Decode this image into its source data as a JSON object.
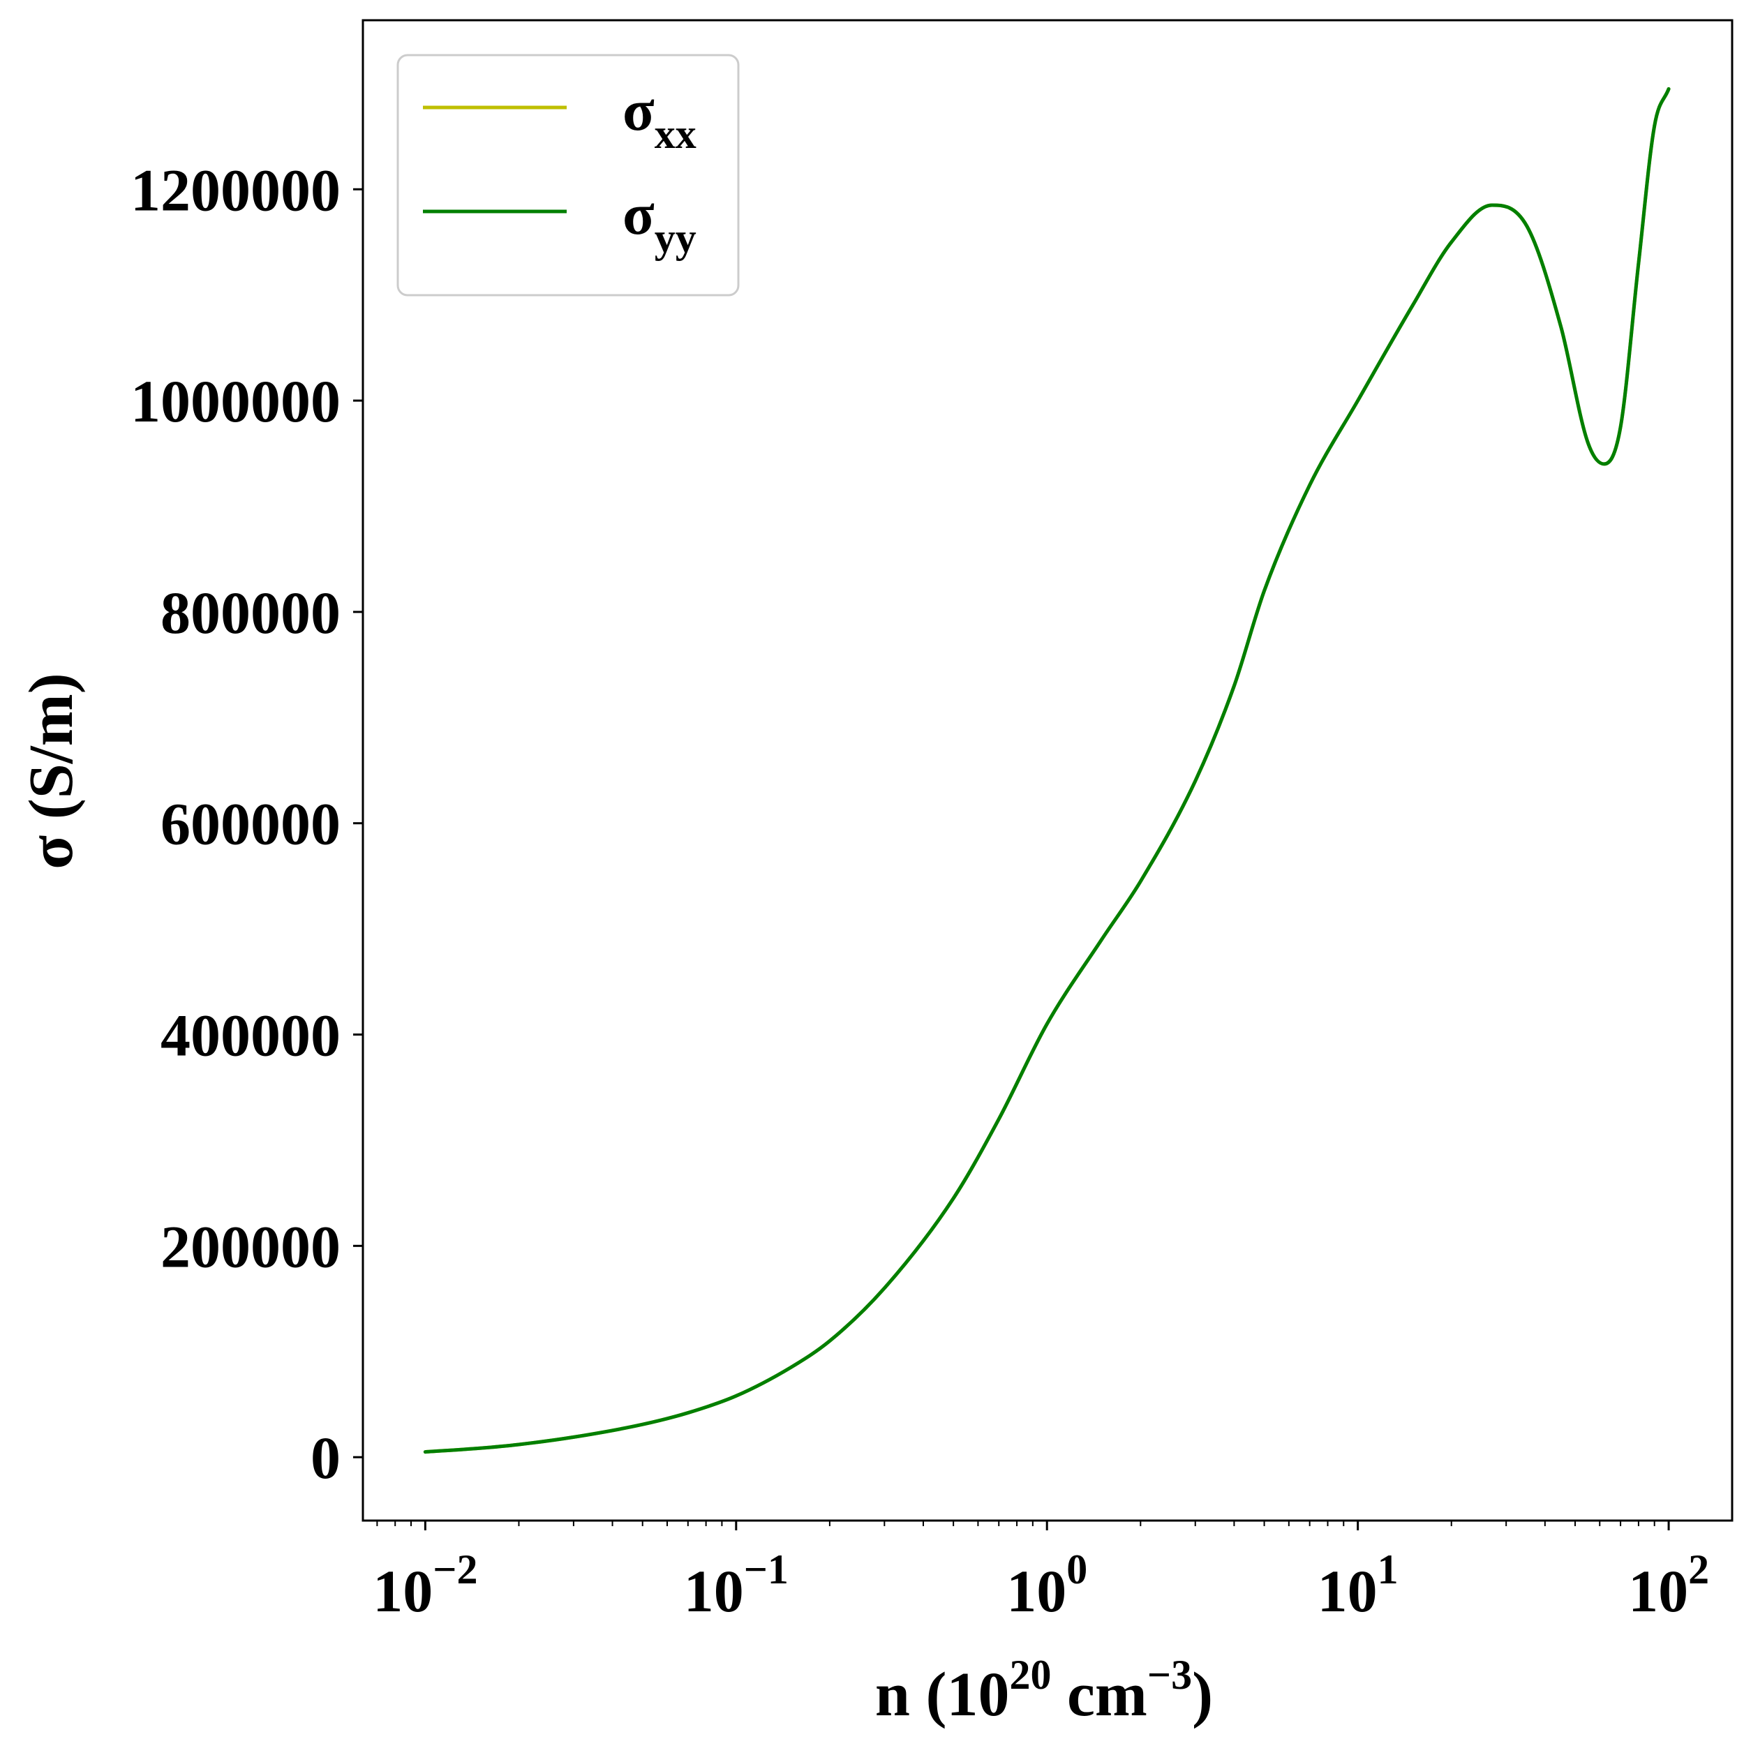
{
  "chart_data": {
    "type": "line",
    "x_scale": "log",
    "xlim": [
      0.0063,
      160
    ],
    "ylim": [
      -60000,
      1360000
    ],
    "xlabel": {
      "base": "n (10",
      "exp1": "20",
      "mid": " cm",
      "exp2": "−3",
      "end": ")"
    },
    "ylabel": "σ (S/m)",
    "x_ticks": [
      {
        "value": 0.01,
        "base": "10",
        "exp": "−2"
      },
      {
        "value": 0.1,
        "base": "10",
        "exp": "−1"
      },
      {
        "value": 1,
        "base": "10",
        "exp": "0"
      },
      {
        "value": 10,
        "base": "10",
        "exp": "1"
      },
      {
        "value": 100,
        "base": "10",
        "exp": "2"
      }
    ],
    "y_ticks": [
      {
        "value": 0,
        "label": "0"
      },
      {
        "value": 200000,
        "label": "200000"
      },
      {
        "value": 400000,
        "label": "400000"
      },
      {
        "value": 600000,
        "label": "600000"
      },
      {
        "value": 800000,
        "label": "800000"
      },
      {
        "value": 1000000,
        "label": "1000000"
      },
      {
        "value": 1200000,
        "label": "1200000"
      }
    ],
    "grid": false,
    "legend_position": "top-left",
    "series": [
      {
        "name": "σ",
        "subscript": "xx",
        "color": "#bfbf00",
        "x": [
          0.01,
          0.015,
          0.02,
          0.03,
          0.05,
          0.07,
          0.1,
          0.15,
          0.2,
          0.3,
          0.5,
          0.7,
          1.0,
          1.5,
          2.0,
          3.0,
          4.0,
          5.0,
          7.0,
          10.0,
          15.0,
          20.0,
          27.0,
          35.0,
          45.0,
          55.0,
          62.0,
          70.0,
          80.0,
          90.0,
          100.0
        ],
        "y": [
          5000,
          8500,
          12000,
          19000,
          31000,
          42000,
          58000,
          85000,
          110000,
          160000,
          245000,
          320000,
          410000,
          490000,
          545000,
          640000,
          730000,
          820000,
          920000,
          1000000,
          1090000,
          1150000,
          1185000,
          1165000,
          1070000,
          960000,
          940000,
          975000,
          1130000,
          1260000,
          1295000
        ]
      },
      {
        "name": "σ",
        "subscript": "yy",
        "color": "#007f00",
        "x": [
          0.01,
          0.015,
          0.02,
          0.03,
          0.05,
          0.07,
          0.1,
          0.15,
          0.2,
          0.3,
          0.5,
          0.7,
          1.0,
          1.5,
          2.0,
          3.0,
          4.0,
          5.0,
          7.0,
          10.0,
          15.0,
          20.0,
          27.0,
          35.0,
          45.0,
          55.0,
          62.0,
          70.0,
          80.0,
          90.0,
          100.0
        ],
        "y": [
          5000,
          8500,
          12000,
          19000,
          31000,
          42000,
          58000,
          85000,
          110000,
          160000,
          245000,
          320000,
          410000,
          490000,
          545000,
          640000,
          730000,
          820000,
          920000,
          1000000,
          1090000,
          1150000,
          1185000,
          1165000,
          1070000,
          960000,
          940000,
          975000,
          1130000,
          1260000,
          1295000
        ]
      }
    ]
  }
}
